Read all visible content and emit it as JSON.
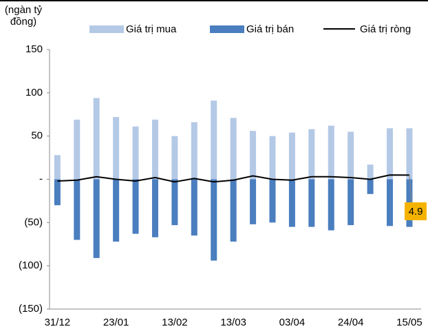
{
  "chart_data": {
    "type": "bar",
    "y_label": "(ngàn tỷ đồng)",
    "categories": [
      "31/12",
      null,
      null,
      "23/01",
      null,
      null,
      "13/02",
      null,
      null,
      "13/03",
      null,
      null,
      "03/04",
      null,
      null,
      "24/04",
      null,
      null,
      "15/05"
    ],
    "series": [
      {
        "name": "Giá trị mua",
        "type": "bar",
        "color": "#b4c9e6",
        "values": [
          28,
          69,
          94,
          72,
          61,
          69,
          50,
          66,
          91,
          71,
          56,
          50,
          54,
          58,
          62,
          55,
          17,
          59,
          59
        ]
      },
      {
        "name": "Giá trị bán",
        "type": "bar",
        "color": "#4a7ebf",
        "values": [
          -30,
          -70,
          -91,
          -72,
          -63,
          -67,
          -53,
          -65,
          -94,
          -72,
          -52,
          -50,
          -55,
          -55,
          -59,
          -53,
          -17,
          -54,
          -55
        ]
      },
      {
        "name": "Giá trị ròng",
        "type": "line",
        "color": "#000000",
        "values": [
          -2,
          -1,
          3,
          0,
          -2,
          2,
          -3,
          1,
          -3,
          -1,
          4,
          0,
          -1,
          3,
          3,
          2,
          0,
          5,
          4.9
        ],
        "value_labels": [
          null,
          null,
          null,
          null,
          null,
          null,
          null,
          null,
          null,
          null,
          null,
          null,
          null,
          null,
          null,
          null,
          null,
          null,
          "4.9"
        ],
        "label_color": "#f5b301"
      }
    ],
    "ylim": [
      -150,
      150
    ],
    "yticks": [
      {
        "value": -150,
        "label": "(150)"
      },
      {
        "value": -100,
        "label": "(100)"
      },
      {
        "value": -50,
        "label": "(50)"
      },
      {
        "value": 0,
        "label": "-"
      },
      50,
      100,
      150
    ],
    "grid": false,
    "legend": "top"
  }
}
